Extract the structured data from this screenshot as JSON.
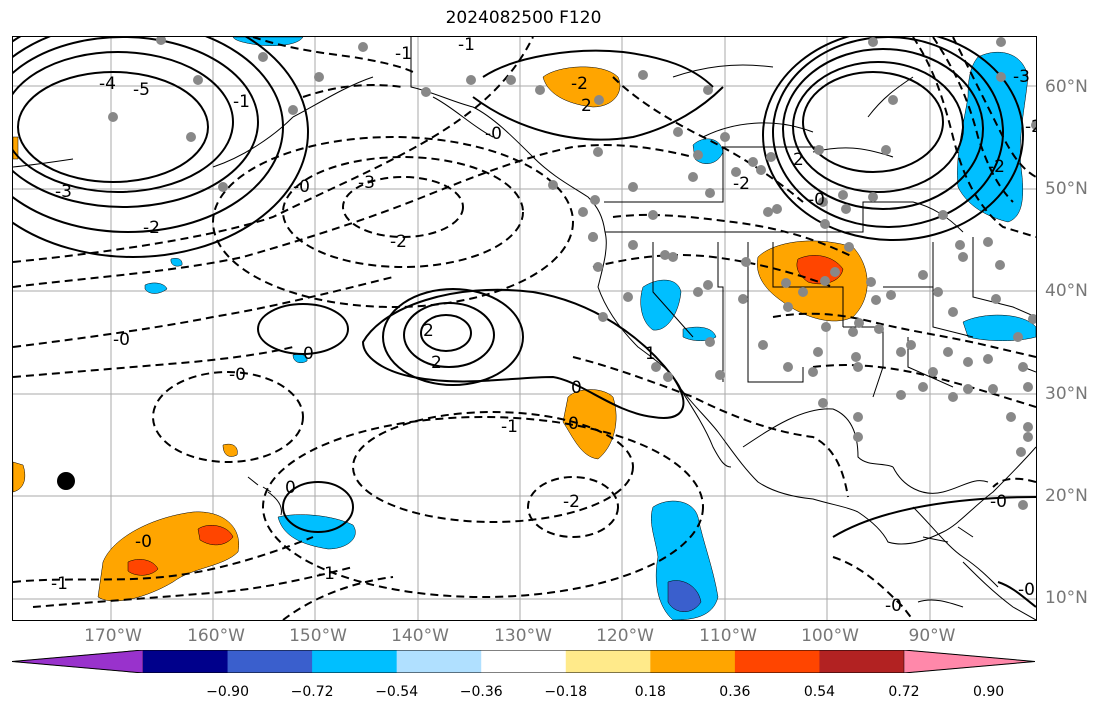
{
  "title": "2024082500 F120",
  "lat_labels": [
    "60°N",
    "50°N",
    "40°N",
    "30°N",
    "20°N",
    "10°N"
  ],
  "lon_labels": [
    "170°W",
    "160°W",
    "150°W",
    "140°W",
    "130°W",
    "120°W",
    "110°W",
    "100°W",
    "90°W"
  ],
  "contour_labels": [
    {
      "text": "-4"
    },
    {
      "text": "-5"
    },
    {
      "text": "-3"
    },
    {
      "text": "-2"
    },
    {
      "text": "-1"
    },
    {
      "text": "-0"
    },
    {
      "text": "-1"
    },
    {
      "text": "-1"
    },
    {
      "text": "-2"
    },
    {
      "text": "-3"
    },
    {
      "text": "-2"
    },
    {
      "text": "-0"
    },
    {
      "text": "-0"
    },
    {
      "text": "2"
    },
    {
      "text": "2"
    },
    {
      "text": "0"
    },
    {
      "text": "1"
    },
    {
      "text": "0"
    },
    {
      "text": "0"
    },
    {
      "text": "-1"
    },
    {
      "text": "-2"
    },
    {
      "text": "0"
    },
    {
      "text": "-1"
    },
    {
      "text": "-1"
    },
    {
      "text": "-0"
    },
    {
      "text": "-2"
    },
    {
      "text": "2"
    },
    {
      "text": "-3"
    },
    {
      "text": "-2"
    },
    {
      "text": "-2"
    },
    {
      "text": "2"
    },
    {
      "text": "-0"
    },
    {
      "text": "-0"
    },
    {
      "text": "-0"
    },
    {
      "text": "-0"
    },
    {
      "text": "-0"
    }
  ],
  "colorbar": {
    "colors": [
      "#9932cc",
      "#00008b",
      "#3a5fcd",
      "#00bfff",
      "#b0e0ff",
      "#ffffff",
      "#ffea8a",
      "#ffa500",
      "#ff4500",
      "#b22222",
      "#ff88aa"
    ],
    "ticks": [
      "−0.90",
      "−0.72",
      "−0.54",
      "−0.36",
      "−0.18",
      "0.18",
      "0.36",
      "0.54",
      "0.72",
      "0.90"
    ]
  }
}
